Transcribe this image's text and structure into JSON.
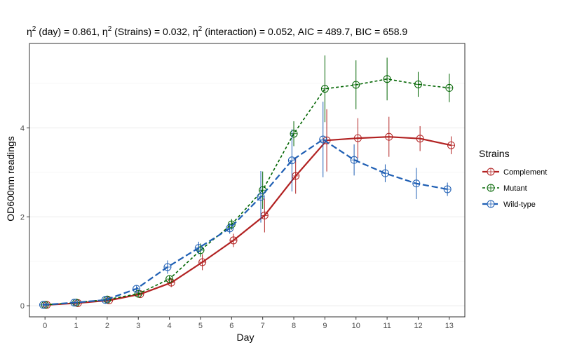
{
  "chart_data": {
    "type": "line",
    "title": {
      "eta": "η",
      "sup": "2",
      "p1": " (day) = 0.861, ",
      "p2": " (Strains) = 0.032, ",
      "p3": " (interaction) = 0.052, AIC = 489.7, BIC = 658.9"
    },
    "xlabel": "Day",
    "ylabel": "OD600nm readings",
    "x": [
      0,
      1,
      2,
      3,
      4,
      5,
      6,
      7,
      8,
      9,
      10,
      11,
      12,
      13
    ],
    "xlim": [
      -0.5,
      13.5
    ],
    "ylim": [
      -0.25,
      5.9
    ],
    "yticks": [
      0,
      2,
      4
    ],
    "yminor": [
      1,
      3,
      5
    ],
    "legend": {
      "title": "Strains",
      "position": "right"
    },
    "series": [
      {
        "name": "Complement",
        "color": "#b22222",
        "dash": "solid",
        "values": [
          0.02,
          0.06,
          0.12,
          0.26,
          0.52,
          0.98,
          1.47,
          2.03,
          2.92,
          3.72,
          3.77,
          3.8,
          3.76,
          3.61
        ],
        "err": [
          0.02,
          0.02,
          0.03,
          0.04,
          0.1,
          0.18,
          0.15,
          0.38,
          0.4,
          0.7,
          0.45,
          0.45,
          0.28,
          0.2
        ]
      },
      {
        "name": "Mutant",
        "color": "#006400",
        "dash": "short",
        "values": [
          0.02,
          0.07,
          0.14,
          0.27,
          0.6,
          1.25,
          1.83,
          2.6,
          3.87,
          4.88,
          4.97,
          5.1,
          4.98,
          4.9
        ],
        "err": [
          0.02,
          0.02,
          0.03,
          0.04,
          0.08,
          0.15,
          0.12,
          0.42,
          0.28,
          0.75,
          0.55,
          0.48,
          0.28,
          0.32
        ]
      },
      {
        "name": "Wild-type",
        "color": "#1f5fb4",
        "dash": "long",
        "values": [
          0.02,
          0.07,
          0.13,
          0.38,
          0.87,
          1.3,
          1.74,
          2.45,
          3.27,
          3.74,
          3.28,
          2.98,
          2.75,
          2.62
        ],
        "err": [
          0.02,
          0.02,
          0.03,
          0.05,
          0.15,
          0.14,
          0.12,
          0.58,
          0.7,
          0.85,
          0.35,
          0.2,
          0.35,
          0.15
        ]
      }
    ]
  }
}
